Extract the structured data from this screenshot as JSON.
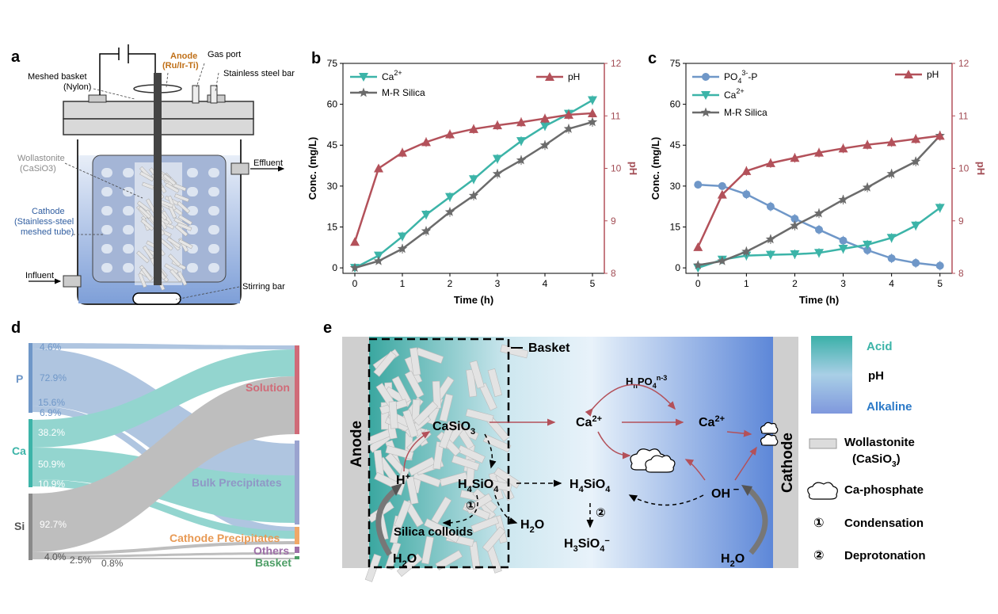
{
  "panel_labels": {
    "a": "a",
    "b": "b",
    "c": "c",
    "d": "d",
    "e": "e"
  },
  "panel_a": {
    "anode": "Anode",
    "anode_sub": "(Ru/Ir-Ti)",
    "gas_port": "Gas port",
    "meshed_basket": "Meshed basket",
    "meshed_basket_sub": "(Nylon)",
    "stainless_bar": "Stainless steel bar",
    "wollastonite": "Wollastonite",
    "wollastonite_sub": "(CaSiO3)",
    "cathode": "Cathode",
    "cathode_sub1": "(Stainless-steel",
    "cathode_sub2": "meshed tube)",
    "effluent": "Effluent",
    "influent": "Influent",
    "stirring_bar": "Stirring bar"
  },
  "colors": {
    "ca": "#3cb4a8",
    "si": "#6b6b6b",
    "ph": "#b3515a",
    "p": "#6f97c8",
    "anode_label": "#c07018",
    "cathode_label": "#2f5da0"
  },
  "chart_data": [
    {
      "type": "line",
      "panel": "b",
      "x": [
        0,
        0.5,
        1,
        1.5,
        2,
        2.5,
        3,
        3.5,
        4,
        4.5,
        5
      ],
      "xlabel": "Time (h)",
      "ylabel": "Conc. (mg/L)",
      "ylabel_right": "pH",
      "xlim": [
        -0.25,
        5.25
      ],
      "ylim": [
        -2,
        75
      ],
      "ylim_right": [
        8,
        12
      ],
      "xticks": [
        "0",
        "1",
        "2",
        "3",
        "4",
        "5"
      ],
      "yticks": [
        "0",
        "15",
        "30",
        "45",
        "60",
        "75"
      ],
      "yticks_right": [
        "8",
        "9",
        "10",
        "11",
        "12"
      ],
      "series": [
        {
          "name": "Ca2+",
          "label_html": "Ca",
          "sup": "2+",
          "axis": "left",
          "marker": "triangle-down",
          "color": "#3cb4a8",
          "values": [
            0,
            4.5,
            11.5,
            19.5,
            26,
            32.5,
            40,
            46.5,
            52,
            56.5,
            61.5
          ]
        },
        {
          "name": "M-R Silica",
          "axis": "left",
          "marker": "star",
          "color": "#6b6b6b",
          "values": [
            0,
            2.5,
            7,
            13.5,
            20.5,
            26.5,
            34.5,
            39.5,
            45,
            51,
            53.5
          ]
        },
        {
          "name": "pH",
          "axis": "right",
          "marker": "triangle-up",
          "color": "#b3515a",
          "values": [
            8.6,
            10.0,
            10.3,
            10.5,
            10.65,
            10.75,
            10.82,
            10.88,
            10.95,
            11.02,
            11.05
          ]
        }
      ]
    },
    {
      "type": "line",
      "panel": "c",
      "x": [
        0,
        0.5,
        1,
        1.5,
        2,
        2.5,
        3,
        3.5,
        4,
        4.5,
        5
      ],
      "xlabel": "Time (h)",
      "ylabel": "Conc. (mg/L)",
      "ylabel_right": "pH",
      "xlim": [
        -0.25,
        5.25
      ],
      "ylim": [
        -2,
        75
      ],
      "ylim_right": [
        8,
        12
      ],
      "xticks": [
        "0",
        "1",
        "2",
        "3",
        "4",
        "5"
      ],
      "yticks": [
        "0",
        "15",
        "30",
        "45",
        "60",
        "75"
      ],
      "yticks_right": [
        "8",
        "9",
        "10",
        "11",
        "12"
      ],
      "series": [
        {
          "name": "PO43--P",
          "label_html": "PO",
          "sub": "4",
          "sup": "3-",
          "suffix": "-P",
          "axis": "left",
          "marker": "circle",
          "color": "#6f97c8",
          "values": [
            30.5,
            30,
            27,
            22.5,
            18,
            14,
            10,
            6.5,
            3.5,
            1.8,
            0.8
          ]
        },
        {
          "name": "Ca2+",
          "label_html": "Ca",
          "sup": "2+",
          "axis": "left",
          "marker": "triangle-down",
          "color": "#3cb4a8",
          "values": [
            0,
            3,
            4.5,
            4.8,
            5,
            5.5,
            7,
            8.5,
            11,
            15.5,
            22
          ]
        },
        {
          "name": "M-R Silica",
          "axis": "left",
          "marker": "star",
          "color": "#6b6b6b",
          "values": [
            1,
            2.5,
            6,
            10.5,
            15.5,
            20,
            25,
            29.5,
            34.5,
            39,
            48.5
          ]
        },
        {
          "name": "pH",
          "axis": "right",
          "marker": "triangle-up",
          "color": "#b3515a",
          "values": [
            8.5,
            9.5,
            9.95,
            10.1,
            10.2,
            10.3,
            10.38,
            10.45,
            10.5,
            10.56,
            10.62
          ]
        }
      ]
    },
    {
      "type": "sankey",
      "panel": "d",
      "sources": [
        {
          "name": "P",
          "color": "#6f97c8"
        },
        {
          "name": "Ca",
          "color": "#3cb4a8"
        },
        {
          "name": "Si",
          "color": "#8a8a8a"
        }
      ],
      "targets": [
        {
          "name": "Solution",
          "color": "#d06b78"
        },
        {
          "name": "Bulk Precipitates",
          "color": "#9aa3cf"
        },
        {
          "name": "Cathode Precipitates",
          "color": "#f0a868"
        },
        {
          "name": "Others",
          "color": "#9e6fa8"
        },
        {
          "name": "Basket",
          "color": "#4d9e66"
        }
      ],
      "flow_labels": [
        {
          "text": "4.6%",
          "color": "#6f97c8"
        },
        {
          "text": "72.9%",
          "color": "#6f97c8"
        },
        {
          "text": "15.6%",
          "color": "#6f97c8"
        },
        {
          "text": "6.9%",
          "color": "#6f97c8"
        },
        {
          "text": "38.2%",
          "color": "#ffffff"
        },
        {
          "text": "50.9%",
          "color": "#ffffff"
        },
        {
          "text": "10.9%",
          "color": "#ffffff"
        },
        {
          "text": "92.7%",
          "color": "#ffffff"
        },
        {
          "text": "4.0%",
          "color": "#555555"
        },
        {
          "text": "2.5%",
          "color": "#555555"
        },
        {
          "text": "0.8%",
          "color": "#555555"
        }
      ]
    }
  ],
  "panel_e": {
    "basket": "Basket",
    "anode": "Anode",
    "cathode": "Cathode",
    "casio3": "CaSiO",
    "casio3_sub": "3",
    "h4sio4_left": "H",
    "h4sio4_mid": "H",
    "hplus": "H",
    "h2o_bottom": "H",
    "h2o_mid": "H",
    "h2o_right": "H",
    "silica_colloids": "Silica colloids",
    "h3sio4": "H",
    "hnpo4": "H",
    "ca2_left": "Ca",
    "ca2_right": "Ca",
    "oh": "OH",
    "circ1": "①",
    "circ2": "②",
    "legend": {
      "acid": "Acid",
      "ph": "pH",
      "alkaline": "Alkaline",
      "wollastonite": "Wollastonite",
      "wollastonite_sub": "(CaSiO",
      "ca_phosphate": "Ca-phosphate",
      "condensation": "Condensation",
      "deprotonation": "Deprotonation"
    }
  }
}
